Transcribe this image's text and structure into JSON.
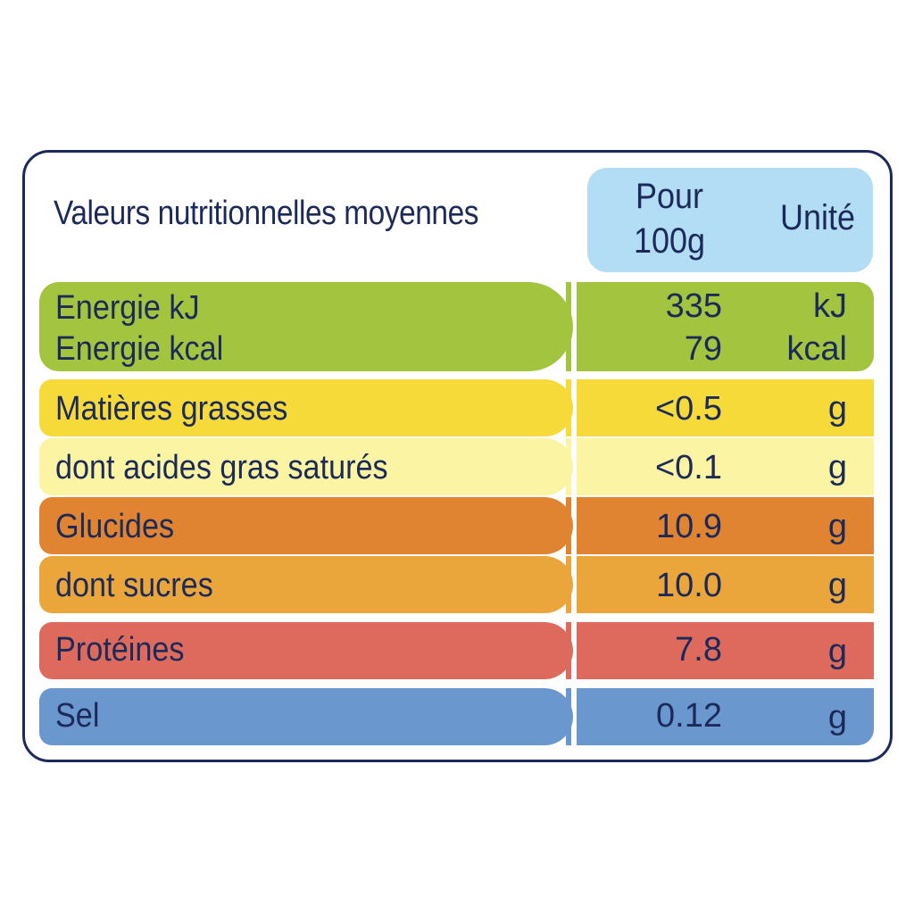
{
  "header": {
    "title": "Valeurs nutritionnelles moyennes",
    "per_100g_line1": "Pour",
    "per_100g_line2": "100g",
    "unit": "Unité"
  },
  "rows": [
    {
      "label": "Energie kJ",
      "label2": "Energie kcal",
      "value": "335",
      "value2": "79",
      "unit": "kJ",
      "unit2": "kcal",
      "color": "#a3c43e"
    },
    {
      "label": "Matières grasses",
      "value": "<0.5",
      "unit": "g",
      "color": "#f5da3a"
    },
    {
      "label": "dont acides gras saturés",
      "value": "<0.1",
      "unit": "g",
      "color": "#fbf5a3"
    },
    {
      "label": "Glucides",
      "value": "10.9",
      "unit": "g",
      "color": "#e08432"
    },
    {
      "label": "dont sucres",
      "value": "10.0",
      "unit": "g",
      "color": "#eaa63a"
    },
    {
      "label": "Protéines",
      "value": "7.8",
      "unit": "g",
      "color": "#dd6a5c"
    },
    {
      "label": "Sel",
      "value": "0.12",
      "unit": "g",
      "color": "#6b97cf"
    }
  ]
}
